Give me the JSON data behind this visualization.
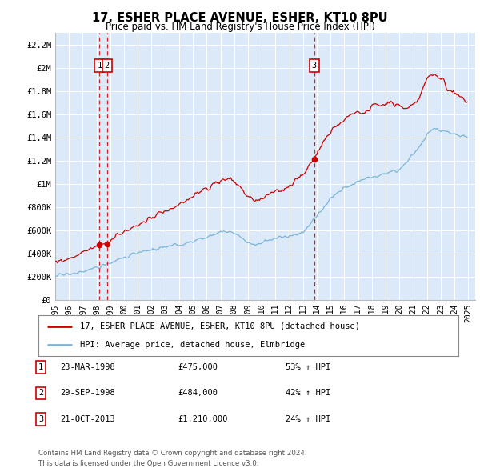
{
  "title": "17, ESHER PLACE AVENUE, ESHER, KT10 8PU",
  "subtitle": "Price paid vs. HM Land Registry's House Price Index (HPI)",
  "legend_line1": "17, ESHER PLACE AVENUE, ESHER, KT10 8PU (detached house)",
  "legend_line2": "HPI: Average price, detached house, Elmbridge",
  "transactions": [
    {
      "num": 1,
      "date": "23-MAR-1998",
      "price": 475000,
      "pct": "53%",
      "year": 1998.22
    },
    {
      "num": 2,
      "date": "29-SEP-1998",
      "price": 484000,
      "pct": "42%",
      "year": 1998.75
    },
    {
      "num": 3,
      "date": "21-OCT-2013",
      "price": 1210000,
      "pct": "24%",
      "year": 2013.8
    }
  ],
  "table_rows": [
    {
      "num": 1,
      "date": "23-MAR-1998",
      "price": "£475,000",
      "info": "53% ↑ HPI"
    },
    {
      "num": 2,
      "date": "29-SEP-1998",
      "price": "£484,000",
      "info": "42% ↑ HPI"
    },
    {
      "num": 3,
      "date": "21-OCT-2013",
      "price": "£1,210,000",
      "info": "24% ↑ HPI"
    }
  ],
  "footnote1": "Contains HM Land Registry data © Crown copyright and database right 2024.",
  "footnote2": "This data is licensed under the Open Government Licence v3.0.",
  "ylim": [
    0,
    2300000
  ],
  "xlim_left": 1995.0,
  "xlim_right": 2025.5,
  "bg_color": "#dce9f8",
  "red_color": "#cc0000",
  "blue_color": "#7ab4d8",
  "dashed_color": "#cc0000",
  "yticks": [
    0,
    200000,
    400000,
    600000,
    800000,
    1000000,
    1200000,
    1400000,
    1600000,
    1800000,
    2000000,
    2200000
  ],
  "ytick_labels": [
    "£0",
    "£200K",
    "£400K",
    "£600K",
    "£800K",
    "£1M",
    "£1.2M",
    "£1.4M",
    "£1.6M",
    "£1.8M",
    "£2M",
    "£2.2M"
  ],
  "xticks": [
    1995,
    1996,
    1997,
    1998,
    1999,
    2000,
    2001,
    2002,
    2003,
    2004,
    2005,
    2006,
    2007,
    2008,
    2009,
    2010,
    2011,
    2012,
    2013,
    2014,
    2015,
    2016,
    2017,
    2018,
    2019,
    2020,
    2021,
    2022,
    2023,
    2024,
    2025
  ]
}
